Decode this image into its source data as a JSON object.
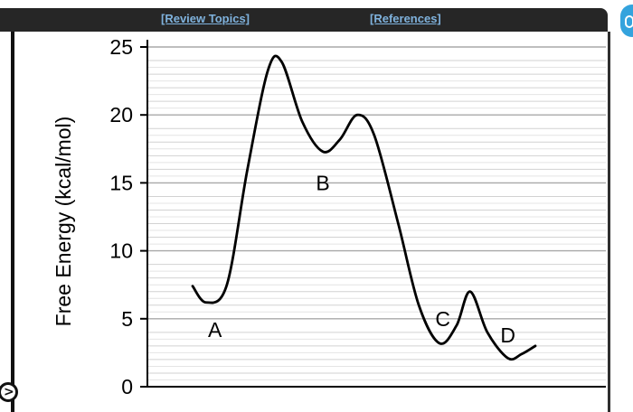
{
  "toolbar": {
    "review_topics_label": "[Review Topics]",
    "references_label": "[References]"
  },
  "controls": {
    "collapse_toggle_icon": "chevron-right-icon"
  },
  "colors": {
    "topbar": "#262626",
    "link": "#7fb2dd",
    "curve": "#000000",
    "grid": "#c8c8c8",
    "accent_icon": "#34a3dd"
  },
  "chart_data": {
    "type": "line",
    "title": "",
    "xlabel": "",
    "ylabel": "Free Energy (kcal/mol)",
    "ylim": [
      0,
      25
    ],
    "yticks": [
      0,
      5,
      10,
      15,
      20,
      25
    ],
    "grid": "horizontal",
    "series": [
      {
        "points": [
          [
            0.0,
            7.4
          ],
          [
            0.04,
            6.2
          ],
          [
            0.1,
            7.5
          ],
          [
            0.16,
            16.0
          ],
          [
            0.22,
            23.3
          ],
          [
            0.26,
            23.9
          ],
          [
            0.32,
            19.5
          ],
          [
            0.38,
            17.3
          ],
          [
            0.43,
            18.2
          ],
          [
            0.48,
            20.0
          ],
          [
            0.53,
            18.5
          ],
          [
            0.6,
            12.0
          ],
          [
            0.66,
            6.0
          ],
          [
            0.72,
            3.2
          ],
          [
            0.77,
            4.5
          ],
          [
            0.81,
            7.0
          ],
          [
            0.86,
            4.0
          ],
          [
            0.92,
            2.1
          ],
          [
            0.96,
            2.4
          ],
          [
            1.0,
            3.0
          ]
        ]
      }
    ],
    "labels": [
      {
        "text": "A",
        "x": 0.065,
        "y": 4.2
      },
      {
        "text": "B",
        "x": 0.38,
        "y": 15.0
      },
      {
        "text": "C",
        "x": 0.73,
        "y": 5.0
      },
      {
        "text": "D",
        "x": 0.92,
        "y": 3.8
      }
    ]
  }
}
